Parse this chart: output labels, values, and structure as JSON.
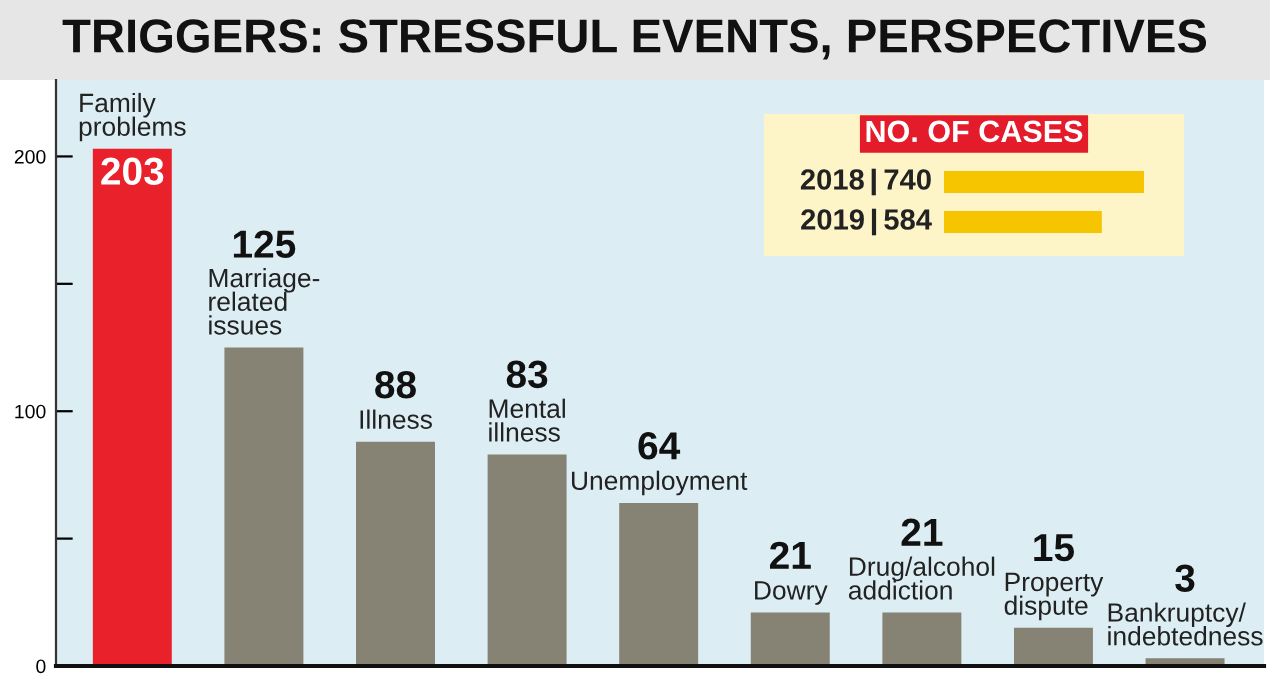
{
  "chart_data": [
    {
      "type": "bar",
      "title": "TRIGGERS: STRESSFUL EVENTS, PERSPECTIVES",
      "categories": [
        null,
        null,
        null,
        null,
        null,
        null,
        null,
        null,
        null
      ],
      "annotations": [
        "Family\nproblems",
        "Marriage-\nrelated\nissues",
        "Illness",
        "Mental\nillness",
        "Unemployment",
        "Dowry",
        "Drug/alcohol\naddiction",
        "Property\ndispute",
        "Bankruptcy/\nindebtedness"
      ],
      "values": [
        203,
        125,
        88,
        83,
        64,
        21,
        21,
        15,
        3
      ],
      "colors": [
        "#e8212a",
        "#868274",
        "#868274",
        "#868274",
        "#868274",
        "#868274",
        "#868274",
        "#868274",
        "#868274"
      ],
      "ylim": [
        0,
        230
      ],
      "yticks": [
        0,
        {
          "value": 50,
          "label": null
        },
        100,
        {
          "value": 150,
          "label": null
        },
        200
      ],
      "tick_labels": "y",
      "data_labels": true
    },
    {
      "type": "bar",
      "orientation": "horizontal",
      "title": "NO. OF CASES",
      "categories": [
        "2018",
        "2019"
      ],
      "values": [
        740,
        584
      ],
      "color": "#f7c500",
      "data_labels": true
    }
  ]
}
